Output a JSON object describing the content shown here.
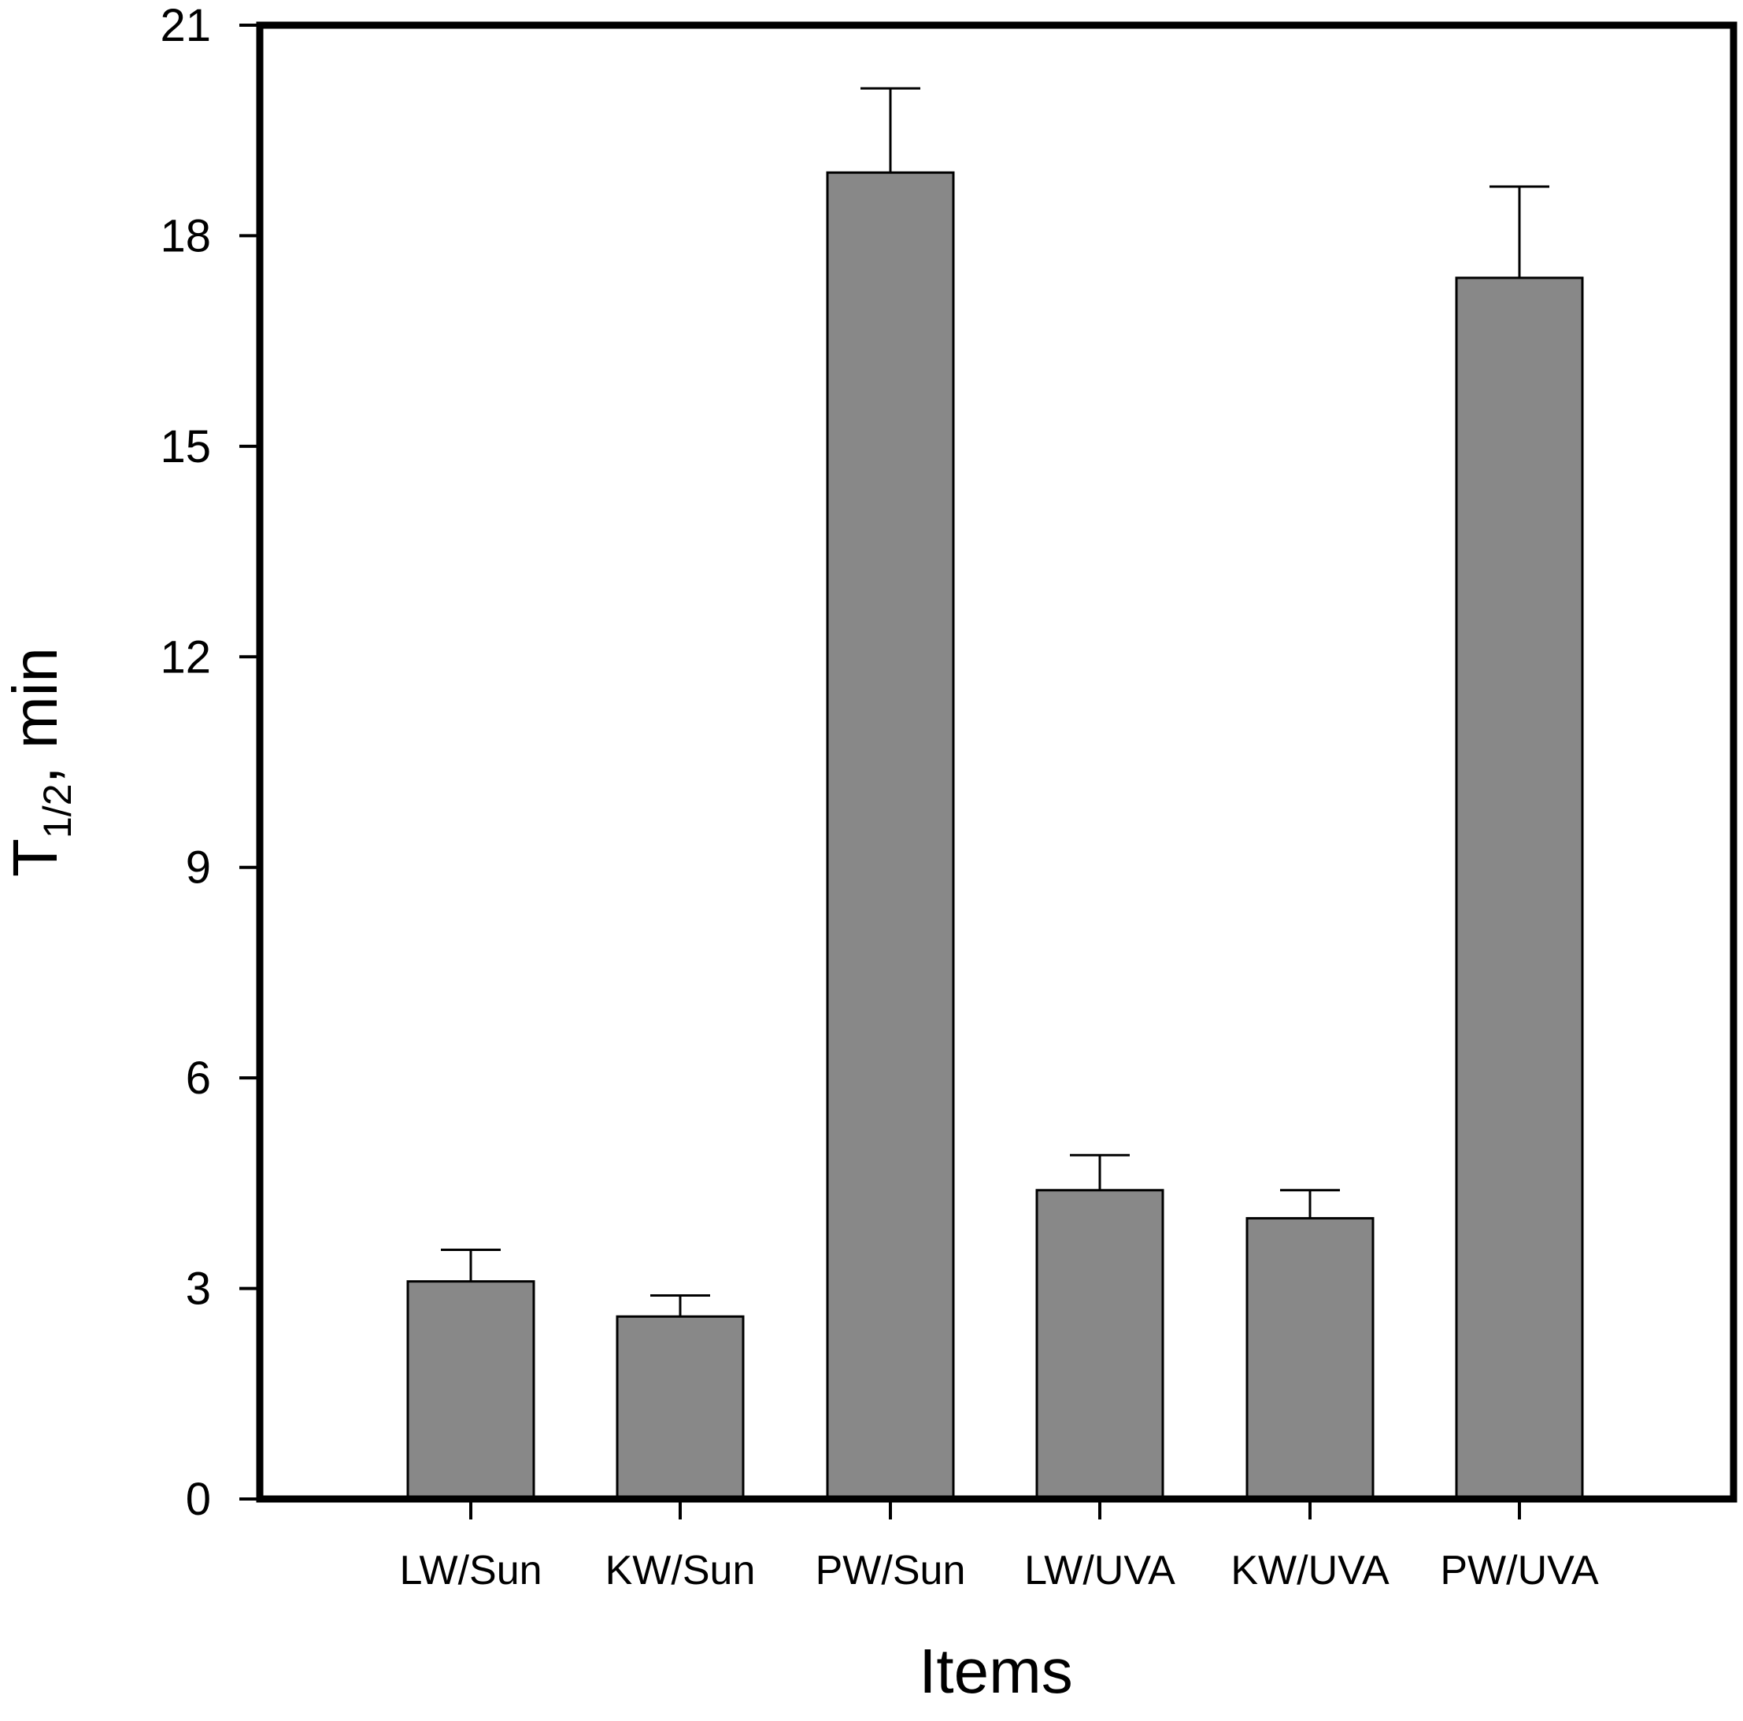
{
  "chart_data": {
    "type": "bar",
    "categories": [
      "LW/Sun",
      "KW/Sun",
      "PW/Sun",
      "LW/UVA",
      "KW/UVA",
      "PW/UVA"
    ],
    "values": [
      3.1,
      2.6,
      18.9,
      4.4,
      4.0,
      17.4
    ],
    "error": [
      0.45,
      0.3,
      1.2,
      0.5,
      0.4,
      1.3
    ],
    "ylim": [
      0,
      21
    ],
    "yticks": [
      "0",
      "3",
      "6",
      "9",
      "12",
      "15",
      "18",
      "21"
    ],
    "xlabel": "Items",
    "ylabel": {
      "main": "T",
      "subscript": "1/2",
      "suffix": ", min"
    },
    "bar_color": "#888888",
    "grid": false
  }
}
